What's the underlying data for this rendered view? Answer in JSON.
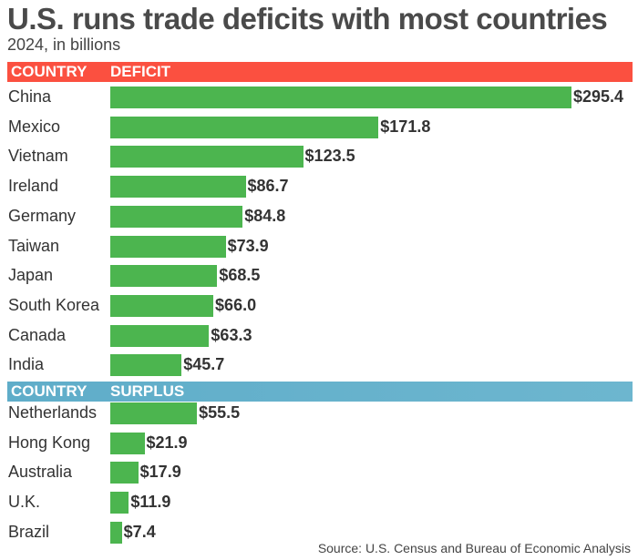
{
  "chart_data": {
    "type": "bar",
    "title": "U.S. runs trade deficits with most countries",
    "subtitle": "2024, in billions",
    "source": "Source: U.S. Census and Bureau of Economic Analysis",
    "colors": {
      "bar": "#4cb54f",
      "deficit_header": "#fb5040",
      "surplus_header": "#68b2cc"
    },
    "sections": [
      {
        "header_country": "COUNTRY",
        "header_value": "DEFICIT",
        "categories": [
          "China",
          "Mexico",
          "Vietnam",
          "Ireland",
          "Germany",
          "Taiwan",
          "Japan",
          "South Korea",
          "Canada",
          "India"
        ],
        "values": [
          295.4,
          171.8,
          123.5,
          86.7,
          84.8,
          73.9,
          68.5,
          66.0,
          63.3,
          45.7
        ],
        "labels": [
          "$295.4",
          "$171.8",
          "$123.5",
          "$86.7",
          "$84.8",
          "$73.9",
          "$68.5",
          "$66.0",
          "$63.3",
          "$45.7"
        ]
      },
      {
        "header_country": "COUNTRY",
        "header_value": "SURPLUS",
        "categories": [
          "Netherlands",
          "Hong Kong",
          "Australia",
          "U.K.",
          "Brazil"
        ],
        "values": [
          55.5,
          21.9,
          17.9,
          11.9,
          7.4
        ],
        "labels": [
          "$55.5",
          "$21.9",
          "$17.9",
          "$11.9",
          "$7.4"
        ]
      }
    ]
  }
}
